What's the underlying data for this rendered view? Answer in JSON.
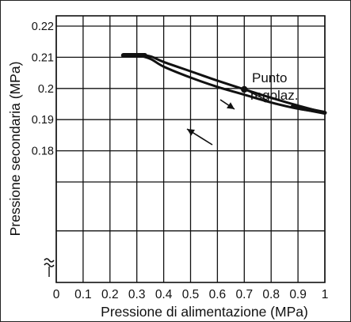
{
  "chart_data": {
    "type": "line",
    "xlabel": "Pressione di alimentazione (MPa)",
    "ylabel": "Pressione secondaria (MPa)",
    "xlim": [
      0,
      1.0
    ],
    "ylim": [
      0.17,
      0.22
    ],
    "x_ticks": [
      "0",
      "0.1",
      "0.2",
      "0.3",
      "0.4",
      "0.5",
      "0.6",
      "0.7",
      "0.8",
      "0.9",
      "1"
    ],
    "y_ticks": [
      "0.18",
      "0.19",
      "0.2",
      "0.21",
      "0.22"
    ],
    "y_axis_break": true,
    "grid": true,
    "series": [
      {
        "direction": "increasing",
        "x": [
          0.25,
          0.3,
          0.35,
          0.4,
          0.5,
          0.6,
          0.7,
          0.8,
          0.9,
          1.0
        ],
        "y": [
          0.2106,
          0.2108,
          0.2103,
          0.2085,
          0.2055,
          0.2025,
          0.1997,
          0.197,
          0.1945,
          0.1922
        ]
      },
      {
        "direction": "decreasing",
        "x": [
          1.0,
          0.9,
          0.8,
          0.7,
          0.6,
          0.5,
          0.4,
          0.35,
          0.3,
          0.25
        ],
        "y": [
          0.1922,
          0.1935,
          0.1955,
          0.198,
          0.2005,
          0.2035,
          0.207,
          0.2095,
          0.2106,
          0.2106
        ]
      }
    ],
    "annotation": {
      "label_line1": "Punto",
      "label_line2": "regolaz.",
      "x": 0.7,
      "y": 0.1997
    }
  }
}
